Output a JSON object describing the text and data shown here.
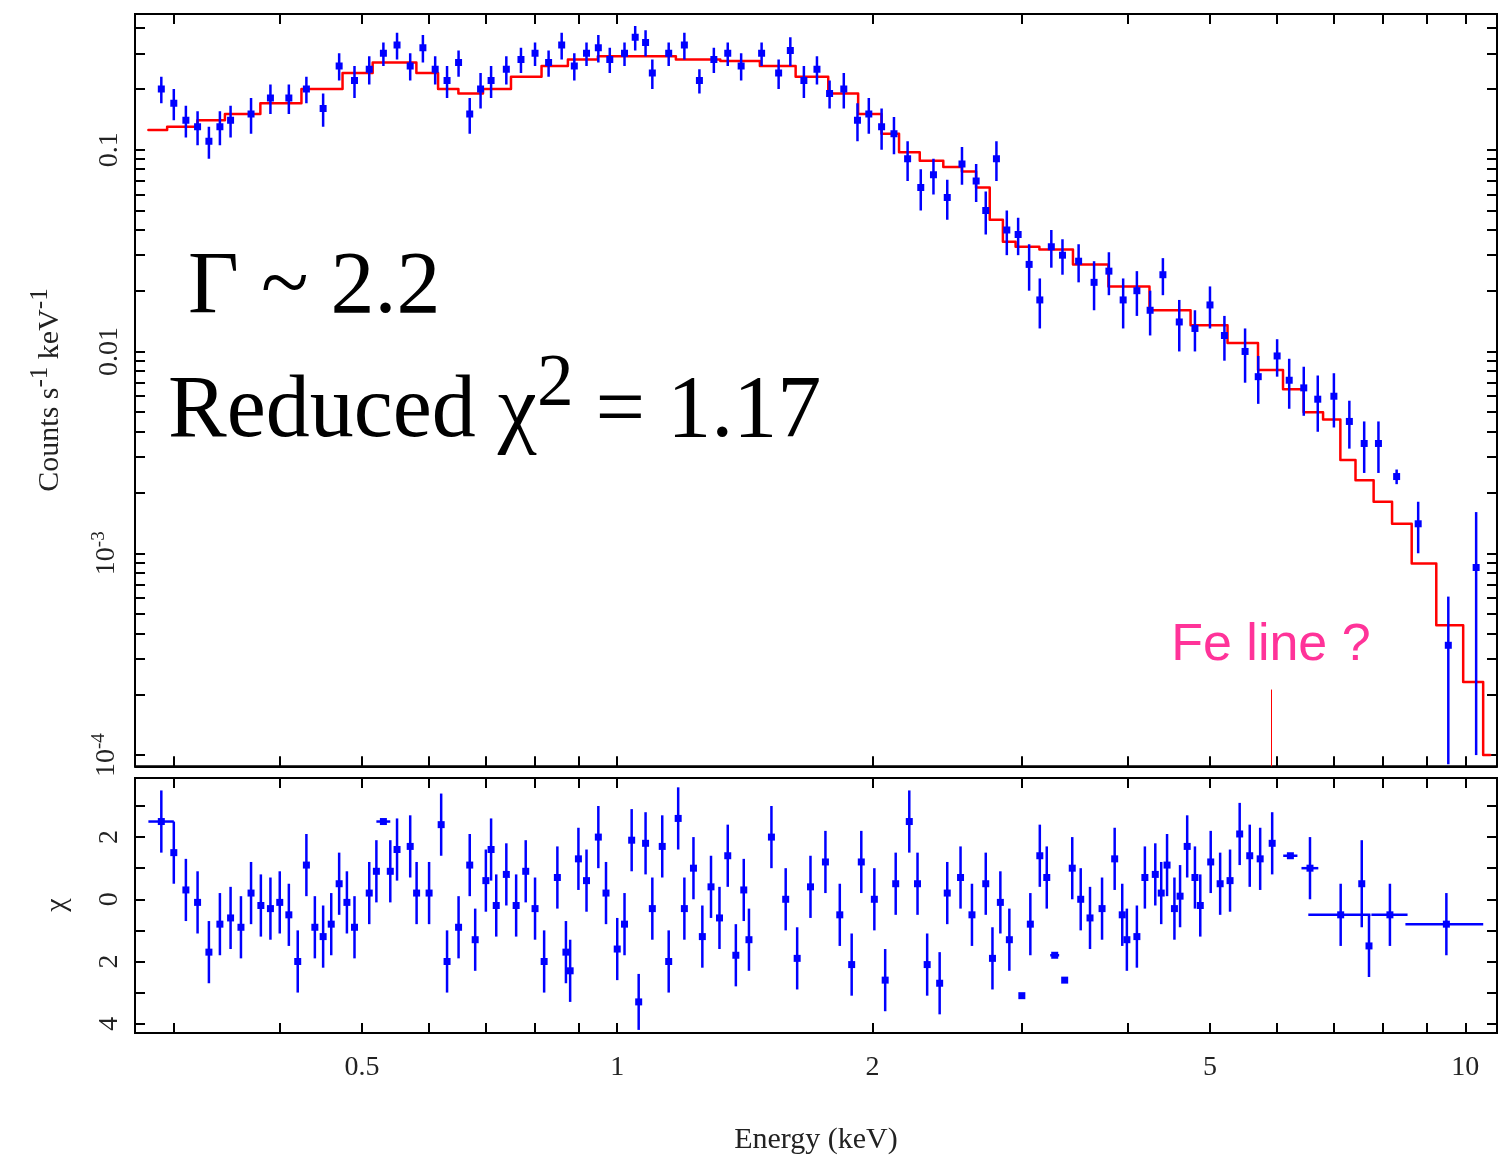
{
  "chart_data": [
    {
      "type": "scatter",
      "ylabel": "Counts s$^{-1}$ keV$^{-1}$",
      "annotations": [
        "Γ ~ 2.2",
        "Reduced χ$^{2}$ = 1.17"
      ],
      "ref_lines": [
        {
          "axis": "x",
          "value": 5.9,
          "label": "Fe line ?",
          "color": "#ff0000"
        }
      ],
      "log": "xy",
      "tick_labels": "y",
      "xlim": [
        0.27,
        10.9
      ],
      "ylim": [
        8.8e-05,
        0.47
      ],
      "xticks": [
        {
          "value": 0.3,
          "label": null
        },
        {
          "value": 0.4,
          "label": null
        },
        0.5,
        {
          "value": 0.6,
          "label": null
        },
        {
          "value": 0.7,
          "label": null
        },
        {
          "value": 0.8,
          "label": null
        },
        {
          "value": 0.9,
          "label": null
        },
        1,
        2,
        {
          "value": 3,
          "label": null
        },
        {
          "value": 4,
          "label": null
        },
        5,
        {
          "value": 6,
          "label": null
        },
        {
          "value": 7,
          "label": null
        },
        {
          "value": 8,
          "label": null
        },
        {
          "value": 9,
          "label": null
        },
        10
      ],
      "yticks": [
        {
          "value": 0.0001,
          "label": "10$^{-4}$"
        },
        {
          "value": 0.0002,
          "label": null
        },
        {
          "value": 0.0003,
          "label": null
        },
        {
          "value": 0.0004,
          "label": null
        },
        {
          "value": 0.0005,
          "label": null
        },
        {
          "value": 0.0006,
          "label": null
        },
        {
          "value": 0.0007,
          "label": null
        },
        {
          "value": 0.0008,
          "label": null
        },
        {
          "value": 0.0009,
          "label": null
        },
        {
          "value": 0.001,
          "label": "10$^{-3}$"
        },
        {
          "value": 0.002,
          "label": null
        },
        {
          "value": 0.003,
          "label": null
        },
        {
          "value": 0.004,
          "label": null
        },
        {
          "value": 0.005,
          "label": null
        },
        {
          "value": 0.006,
          "label": null
        },
        {
          "value": 0.007,
          "label": null
        },
        {
          "value": 0.008,
          "label": null
        },
        {
          "value": 0.009,
          "label": null
        },
        0.01,
        {
          "value": 0.02,
          "label": null
        },
        {
          "value": 0.03,
          "label": null
        },
        {
          "value": 0.04,
          "label": null
        },
        {
          "value": 0.05,
          "label": null
        },
        {
          "value": 0.06,
          "label": null
        },
        {
          "value": 0.07,
          "label": null
        },
        {
          "value": 0.08,
          "label": null
        },
        {
          "value": 0.09,
          "label": null
        },
        0.1,
        {
          "value": 0.2,
          "label": null
        },
        {
          "value": 0.3,
          "label": null
        },
        {
          "value": 0.4,
          "label": null
        }
      ],
      "series": [
        {
          "marker": "square",
          "color": "#0000ff",
          "x": [
            0.29,
            0.3,
            0.31,
            0.32,
            0.33,
            0.34,
            0.35,
            0.37,
            0.39,
            0.41,
            0.43,
            0.45,
            0.47,
            0.49,
            0.51,
            0.53,
            0.55,
            0.57,
            0.59,
            0.61,
            0.63,
            0.65,
            0.67,
            0.69,
            0.71,
            0.74,
            0.77,
            0.8,
            0.83,
            0.86,
            0.89,
            0.92,
            0.95,
            0.98,
            1.02,
            1.05,
            1.08,
            1.1,
            1.15,
            1.2,
            1.25,
            1.3,
            1.35,
            1.4,
            1.48,
            1.55,
            1.6,
            1.66,
            1.72,
            1.78,
            1.85,
            1.92,
            1.98,
            2.05,
            2.12,
            2.2,
            2.28,
            2.36,
            2.45,
            2.55,
            2.65,
            2.72,
            2.8,
            2.88,
            2.97,
            3.06,
            3.15,
            3.25,
            3.35,
            3.5,
            3.65,
            3.8,
            3.95,
            4.1,
            4.25,
            4.4,
            4.6,
            4.8,
            5.0,
            5.2,
            5.5,
            5.7,
            6.0,
            6.2,
            6.45,
            6.7,
            7.0,
            7.3,
            7.6,
            7.9,
            8.3,
            8.8,
            9.55,
            10.3
          ],
          "values": [
            0.2,
            0.17,
            0.14,
            0.13,
            0.11,
            0.13,
            0.14,
            0.15,
            0.18,
            0.18,
            0.2,
            0.16,
            0.26,
            0.22,
            0.25,
            0.3,
            0.33,
            0.26,
            0.32,
            0.25,
            0.22,
            0.27,
            0.15,
            0.2,
            0.22,
            0.25,
            0.28,
            0.3,
            0.27,
            0.33,
            0.26,
            0.3,
            0.32,
            0.28,
            0.3,
            0.36,
            0.34,
            0.24,
            0.3,
            0.33,
            0.22,
            0.28,
            0.3,
            0.26,
            0.3,
            0.24,
            0.31,
            0.22,
            0.25,
            0.19,
            0.2,
            0.14,
            0.15,
            0.13,
            0.12,
            0.09,
            0.065,
            0.075,
            0.058,
            0.085,
            0.07,
            0.05,
            0.09,
            0.04,
            0.038,
            0.027,
            0.018,
            0.033,
            0.03,
            0.028,
            0.022,
            0.025,
            0.018,
            0.02,
            0.016,
            0.024,
            0.014,
            0.013,
            0.017,
            0.012,
            0.01,
            0.0075,
            0.0095,
            0.0072,
            0.0066,
            0.0058,
            0.006,
            0.0045,
            0.0035,
            0.0035,
            0.0024,
            0.0014,
            0.00035,
            0.00085
          ],
          "errors": [
            0.03,
            0.03,
            0.025,
            0.025,
            0.02,
            0.025,
            0.025,
            0.03,
            0.03,
            0.03,
            0.03,
            0.03,
            0.04,
            0.04,
            0.04,
            0.04,
            0.05,
            0.04,
            0.05,
            0.04,
            0.04,
            0.04,
            0.03,
            0.04,
            0.04,
            0.04,
            0.04,
            0.04,
            0.04,
            0.05,
            0.04,
            0.04,
            0.05,
            0.04,
            0.04,
            0.05,
            0.05,
            0.04,
            0.04,
            0.05,
            0.03,
            0.04,
            0.04,
            0.04,
            0.04,
            0.04,
            0.05,
            0.04,
            0.04,
            0.03,
            0.04,
            0.03,
            0.03,
            0.03,
            0.025,
            0.02,
            0.015,
            0.015,
            0.013,
            0.018,
            0.015,
            0.012,
            0.02,
            0.01,
            0.008,
            0.007,
            0.005,
            0.007,
            0.006,
            0.006,
            0.006,
            0.006,
            0.005,
            0.005,
            0.004,
            0.005,
            0.004,
            0.003,
            0.004,
            0.003,
            0.003,
            0.002,
            0.002,
            0.002,
            0.0018,
            0.0018,
            0.0018,
            0.0012,
            0.001,
            0.001,
            0.0002,
            0.0004,
            0.00026,
            0.00075
          ]
        },
        {
          "type": "step",
          "color": "#ff0000",
          "x": [
            0.28,
            0.31,
            0.33,
            0.36,
            0.4,
            0.45,
            0.5,
            0.53,
            0.56,
            0.6,
            0.63,
            0.67,
            0.72,
            0.78,
            0.85,
            0.9,
            1.0,
            1.1,
            1.25,
            1.4,
            1.55,
            1.7,
            1.85,
            2.0,
            2.1,
            2.2,
            2.35,
            2.5,
            2.6,
            2.7,
            2.8,
            2.9,
            3.0,
            3.3,
            3.6,
            4.0,
            4.5,
            5.0,
            5.5,
            5.9,
            6.3,
            6.6,
            7.0,
            7.25,
            7.6,
            8.0,
            8.4,
            8.9,
            9.6,
            10.3,
            10.7
          ],
          "values": [
            0.125,
            0.13,
            0.14,
            0.15,
            0.17,
            0.2,
            0.24,
            0.27,
            0.27,
            0.24,
            0.2,
            0.19,
            0.2,
            0.23,
            0.26,
            0.28,
            0.29,
            0.29,
            0.28,
            0.275,
            0.26,
            0.23,
            0.19,
            0.15,
            0.12,
            0.097,
            0.088,
            0.082,
            0.078,
            0.065,
            0.045,
            0.035,
            0.033,
            0.032,
            0.027,
            0.021,
            0.016,
            0.0135,
            0.011,
            0.0081,
            0.0065,
            0.005,
            0.0046,
            0.0029,
            0.0023,
            0.0018,
            0.0014,
            0.00089,
            0.00044,
            0.00023,
            0.0001
          ]
        }
      ]
    },
    {
      "type": "scatter",
      "xlabel": "Energy (keV)",
      "ylabel": "χ",
      "log": "x",
      "marker": "square",
      "xlim": [
        0.27,
        10.9
      ],
      "ylim": [
        -4.3,
        3.9
      ],
      "xticks": [
        {
          "value": 0.3,
          "label": null
        },
        {
          "value": 0.4,
          "label": null
        },
        0.5,
        {
          "value": 0.6,
          "label": null
        },
        {
          "value": 0.7,
          "label": null
        },
        {
          "value": 0.8,
          "label": null
        },
        {
          "value": 0.9,
          "label": null
        },
        1,
        2,
        {
          "value": 3,
          "label": null
        },
        {
          "value": 4,
          "label": null
        },
        5,
        {
          "value": 6,
          "label": null
        },
        {
          "value": 7,
          "label": null
        },
        {
          "value": 8,
          "label": null
        },
        {
          "value": 9,
          "label": null
        },
        10
      ],
      "yticks": [
        {
          "value": -4,
          "label": "4"
        },
        {
          "value": -3,
          "label": null
        },
        {
          "value": -2,
          "label": "2"
        },
        {
          "value": -1,
          "label": null
        },
        0,
        {
          "value": 1,
          "label": null
        },
        2,
        {
          "value": 3,
          "label": null
        }
      ],
      "series": [
        {
          "color": "#0000ff",
          "x": [
            0.29,
            0.3,
            0.31,
            0.32,
            0.33,
            0.34,
            0.35,
            0.36,
            0.37,
            0.38,
            0.39,
            0.4,
            0.41,
            0.42,
            0.43,
            0.44,
            0.45,
            0.46,
            0.47,
            0.48,
            0.49,
            0.51,
            0.52,
            0.53,
            0.54,
            0.55,
            0.57,
            0.58,
            0.6,
            0.62,
            0.63,
            0.65,
            0.67,
            0.68,
            0.7,
            0.71,
            0.72,
            0.74,
            0.76,
            0.78,
            0.8,
            0.82,
            0.85,
            0.87,
            0.88,
            0.9,
            0.92,
            0.95,
            0.97,
            1.0,
            1.02,
            1.04,
            1.06,
            1.08,
            1.1,
            1.13,
            1.15,
            1.18,
            1.2,
            1.23,
            1.26,
            1.29,
            1.32,
            1.35,
            1.38,
            1.41,
            1.43,
            1.52,
            1.58,
            1.63,
            1.69,
            1.76,
            1.83,
            1.89,
            1.94,
            2.01,
            2.07,
            2.13,
            2.21,
            2.26,
            2.32,
            2.4,
            2.45,
            2.54,
            2.62,
            2.72,
            2.77,
            2.83,
            2.9,
            3.0,
            3.07,
            3.15,
            3.21,
            3.28,
            3.37,
            3.44,
            3.52,
            3.61,
            3.73,
            3.86,
            3.94,
            3.99,
            4.1,
            4.19,
            4.31,
            4.38,
            4.45,
            4.54,
            4.61,
            4.7,
            4.8,
            4.87,
            5.01,
            5.14,
            5.28,
            5.42,
            5.57,
            5.73,
            5.92,
            6.22,
            6.56,
            7.13,
            7.55,
            7.7,
            8.15,
            9.5
          ],
          "values": [
            2.5,
            1.5,
            0.3,
            -0.1,
            -1.7,
            -0.8,
            -0.6,
            -0.9,
            0.2,
            -0.2,
            -0.3,
            -0.1,
            -0.5,
            -2.0,
            1.1,
            -0.9,
            -1.2,
            -0.8,
            0.5,
            -0.1,
            -0.9,
            0.2,
            0.9,
            2.5,
            0.9,
            1.6,
            1.7,
            0.2,
            0.2,
            2.4,
            -2.0,
            -0.9,
            1.1,
            -1.3,
            0.6,
            1.6,
            -0.2,
            0.8,
            -0.2,
            0.9,
            -0.3,
            -2.0,
            0.7,
            -1.7,
            -2.3,
            1.3,
            0.6,
            2.0,
            0.2,
            -1.6,
            -0.8,
            1.9,
            -3.3,
            1.8,
            -0.3,
            1.7,
            -2.0,
            2.6,
            -0.3,
            1.0,
            -1.2,
            0.4,
            -0.6,
            1.4,
            -1.8,
            0.3,
            -1.3,
            2.0,
            0.0,
            -1.9,
            0.4,
            1.2,
            -0.5,
            -2.1,
            1.2,
            0.0,
            -2.6,
            0.5,
            2.5,
            0.5,
            -2.1,
            -2.7,
            0.2,
            0.7,
            -0.5,
            0.5,
            -1.9,
            -0.1,
            -1.3,
            -3.1,
            -0.8,
            1.4,
            0.7,
            -1.8,
            -2.6,
            1.0,
            0.0,
            -0.6,
            -0.3,
            1.3,
            -0.5,
            -1.3,
            -1.2,
            0.7,
            0.8,
            0.2,
            1.1,
            -0.3,
            0.1,
            1.7,
            0.7,
            -0.2,
            1.2,
            0.5,
            0.6,
            2.1,
            1.4,
            1.3,
            1.8,
            1.4,
            1.0,
            -0.5,
            0.5,
            -1.5,
            -0.5,
            -0.8
          ],
          "errors": [
            1,
            1,
            1,
            1,
            1,
            1,
            1,
            1,
            1,
            1,
            1,
            1,
            1,
            1,
            1,
            1,
            1,
            1,
            1,
            1,
            1,
            1,
            1,
            null,
            1,
            1,
            1,
            1,
            1,
            1,
            1,
            1,
            1,
            1,
            1,
            1,
            1,
            1,
            1,
            1,
            1,
            1,
            1,
            1,
            1,
            1,
            1,
            1,
            1,
            1,
            1,
            1,
            0.9,
            1,
            1,
            1,
            1,
            1,
            1,
            1,
            1,
            1,
            1,
            1,
            1,
            1,
            1,
            1,
            1,
            1,
            1,
            1,
            1,
            1,
            1,
            1,
            1,
            1,
            1,
            1,
            1,
            1,
            1,
            1,
            1,
            1,
            1,
            1,
            1,
            null,
            1,
            1,
            1,
            null,
            null,
            1,
            1,
            1,
            1,
            1,
            1,
            1,
            1,
            1,
            1,
            1,
            1,
            1,
            1,
            1,
            1,
            1,
            1,
            1,
            1,
            1,
            1,
            1,
            1,
            null,
            1,
            1,
            1.4,
            1,
            1,
            1
          ],
          "xerrors": [
            0.01,
            null,
            null,
            null,
            null,
            null,
            null,
            null,
            null,
            null,
            null,
            null,
            null,
            null,
            null,
            null,
            null,
            null,
            null,
            null,
            null,
            null,
            null,
            0.01,
            null,
            null,
            null,
            null,
            null,
            null,
            null,
            null,
            null,
            null,
            null,
            null,
            null,
            null,
            null,
            null,
            null,
            null,
            null,
            null,
            null,
            null,
            null,
            null,
            null,
            null,
            null,
            null,
            null,
            null,
            null,
            null,
            null,
            null,
            null,
            null,
            null,
            null,
            null,
            null,
            null,
            null,
            null,
            null,
            null,
            null,
            null,
            null,
            null,
            null,
            null,
            null,
            null,
            null,
            null,
            null,
            null,
            null,
            null,
            null,
            null,
            null,
            null,
            null,
            null,
            null,
            null,
            null,
            null,
            0.04,
            null,
            null,
            null,
            null,
            null,
            null,
            null,
            null,
            null,
            null,
            null,
            null,
            null,
            null,
            null,
            null,
            null,
            null,
            null,
            null,
            null,
            null,
            null,
            null,
            null,
            0.12,
            0.15,
            0.6,
            null,
            null,
            0.4,
            1.0
          ]
        }
      ]
    }
  ]
}
